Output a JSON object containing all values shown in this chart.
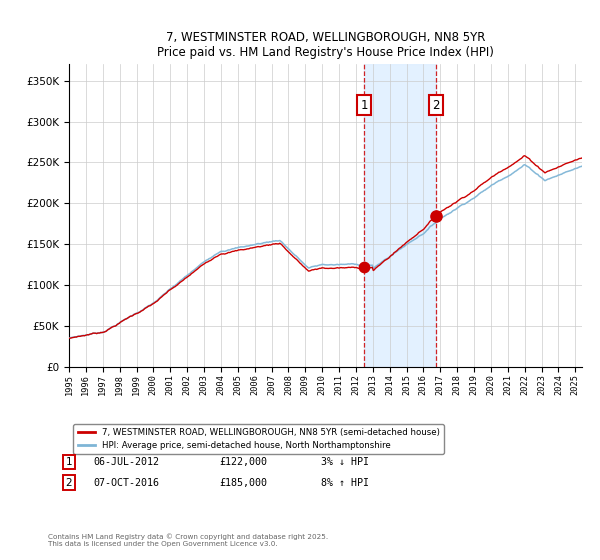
{
  "title": "7, WESTMINSTER ROAD, WELLINGBOROUGH, NN8 5YR",
  "subtitle": "Price paid vs. HM Land Registry's House Price Index (HPI)",
  "legend_line1": "7, WESTMINSTER ROAD, WELLINGBOROUGH, NN8 5YR (semi-detached house)",
  "legend_line2": "HPI: Average price, semi-detached house, North Northamptonshire",
  "annotation1_label": "1",
  "annotation1_date": "06-JUL-2012",
  "annotation1_price": "£122,000",
  "annotation1_pct": "3% ↓ HPI",
  "annotation2_label": "2",
  "annotation2_date": "07-OCT-2016",
  "annotation2_price": "£185,000",
  "annotation2_pct": "8% ↑ HPI",
  "footnote": "Contains HM Land Registry data © Crown copyright and database right 2025.\nThis data is licensed under the Open Government Licence v3.0.",
  "red_color": "#cc0000",
  "blue_color": "#7eb5d6",
  "shading_color": "#ddeeff",
  "ylim": [
    0,
    370000
  ],
  "yticks": [
    0,
    50000,
    100000,
    150000,
    200000,
    250000,
    300000,
    350000
  ],
  "sale1_year": 2012.5,
  "sale1_price": 122000,
  "sale2_year": 2016.75,
  "sale2_price": 185000,
  "xstart": 1995,
  "xend": 2025.4
}
